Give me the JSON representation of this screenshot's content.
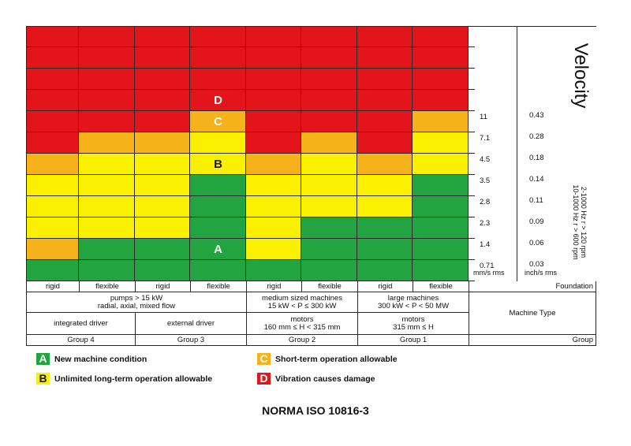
{
  "colors": {
    "A": "#22a540",
    "B": "#fbf000",
    "C": "#f5b21b",
    "D": "#e3151b"
  },
  "chart_data": {
    "type": "heatmap",
    "title": "Velocity",
    "footer": "NORMA ISO 10816-3",
    "y_axis_mm": {
      "unit": "mm/s rms",
      "ticks": [
        "11",
        "7.1",
        "4.5",
        "3.5",
        "2.8",
        "2.3",
        "1.4",
        "0.71"
      ]
    },
    "y_axis_in": {
      "unit": "inch/s rms",
      "ticks": [
        "0.43",
        "0.28",
        "0.18",
        "0.14",
        "0.11",
        "0.09",
        "0.06",
        "0.03"
      ]
    },
    "frequency_notes": [
      "10-1000 Hz r > 600 rpm",
      "2-1000 Hz r > 120 rpm"
    ],
    "zone_labels": [
      {
        "zone": "D",
        "col": 3,
        "row": 3,
        "text": "D"
      },
      {
        "zone": "C",
        "col": 3,
        "row": 4,
        "text": "C"
      },
      {
        "zone": "B",
        "col": 3,
        "row": 6,
        "text": "B"
      },
      {
        "zone": "A",
        "col": 3,
        "row": 10,
        "text": "A"
      }
    ],
    "columns": [
      {
        "foundation": "rigid",
        "zones": [
          "D",
          "D",
          "D",
          "D",
          "D",
          "D",
          "C",
          "B",
          "B",
          "B",
          "C",
          "A",
          "A"
        ]
      },
      {
        "foundation": "flexible",
        "zones": [
          "D",
          "D",
          "D",
          "D",
          "D",
          "C",
          "B",
          "B",
          "B",
          "B",
          "A",
          "A",
          "A"
        ]
      },
      {
        "foundation": "rigid",
        "zones": [
          "D",
          "D",
          "D",
          "D",
          "D",
          "C",
          "B",
          "B",
          "B",
          "B",
          "A",
          "A",
          "A"
        ]
      },
      {
        "foundation": "flexible",
        "zones": [
          "D",
          "D",
          "D",
          "D",
          "C",
          "B",
          "B",
          "A",
          "A",
          "A",
          "A",
          "A",
          "A"
        ]
      },
      {
        "foundation": "rigid",
        "zones": [
          "D",
          "D",
          "D",
          "D",
          "D",
          "D",
          "C",
          "B",
          "B",
          "B",
          "B",
          "A",
          "A"
        ]
      },
      {
        "foundation": "flexible",
        "zones": [
          "D",
          "D",
          "D",
          "D",
          "D",
          "C",
          "B",
          "B",
          "B",
          "A",
          "A",
          "A",
          "A"
        ]
      },
      {
        "foundation": "rigid",
        "zones": [
          "D",
          "D",
          "D",
          "D",
          "D",
          "D",
          "C",
          "B",
          "B",
          "A",
          "A",
          "A",
          "A"
        ]
      },
      {
        "foundation": "flexible",
        "zones": [
          "D",
          "D",
          "D",
          "D",
          "C",
          "B",
          "B",
          "A",
          "A",
          "A",
          "A",
          "A",
          "A"
        ]
      }
    ]
  },
  "table": {
    "foundation_label": "Foundation",
    "machine_type_label": "Machine Type",
    "group_label": "Group",
    "machine_types": [
      {
        "lines": [
          "pumps > 15 kW",
          "radial, axial, mixed flow"
        ]
      },
      {
        "lines": [
          "medium sized machines",
          "15 kW < P ≤ 300 kW"
        ]
      },
      {
        "lines": [
          "large machines",
          "300 kW < P < 50 MW"
        ]
      }
    ],
    "drivers": [
      {
        "lines": [
          "integrated driver"
        ]
      },
      {
        "lines": [
          "external driver"
        ]
      },
      {
        "lines": [
          "motors",
          "160 mm ≤ H < 315 mm"
        ]
      },
      {
        "lines": [
          "motors",
          "315 mm ≤ H"
        ]
      }
    ],
    "groups": [
      "Group 4",
      "Group 3",
      "Group 2",
      "Group 1"
    ]
  },
  "legend": [
    {
      "zone": "A",
      "text": "New machine condition"
    },
    {
      "zone": "C",
      "text": "Short-term operation allowable"
    },
    {
      "zone": "B",
      "text": "Unlimited long-term operation allowable"
    },
    {
      "zone": "D",
      "text": "Vibration causes damage"
    }
  ]
}
